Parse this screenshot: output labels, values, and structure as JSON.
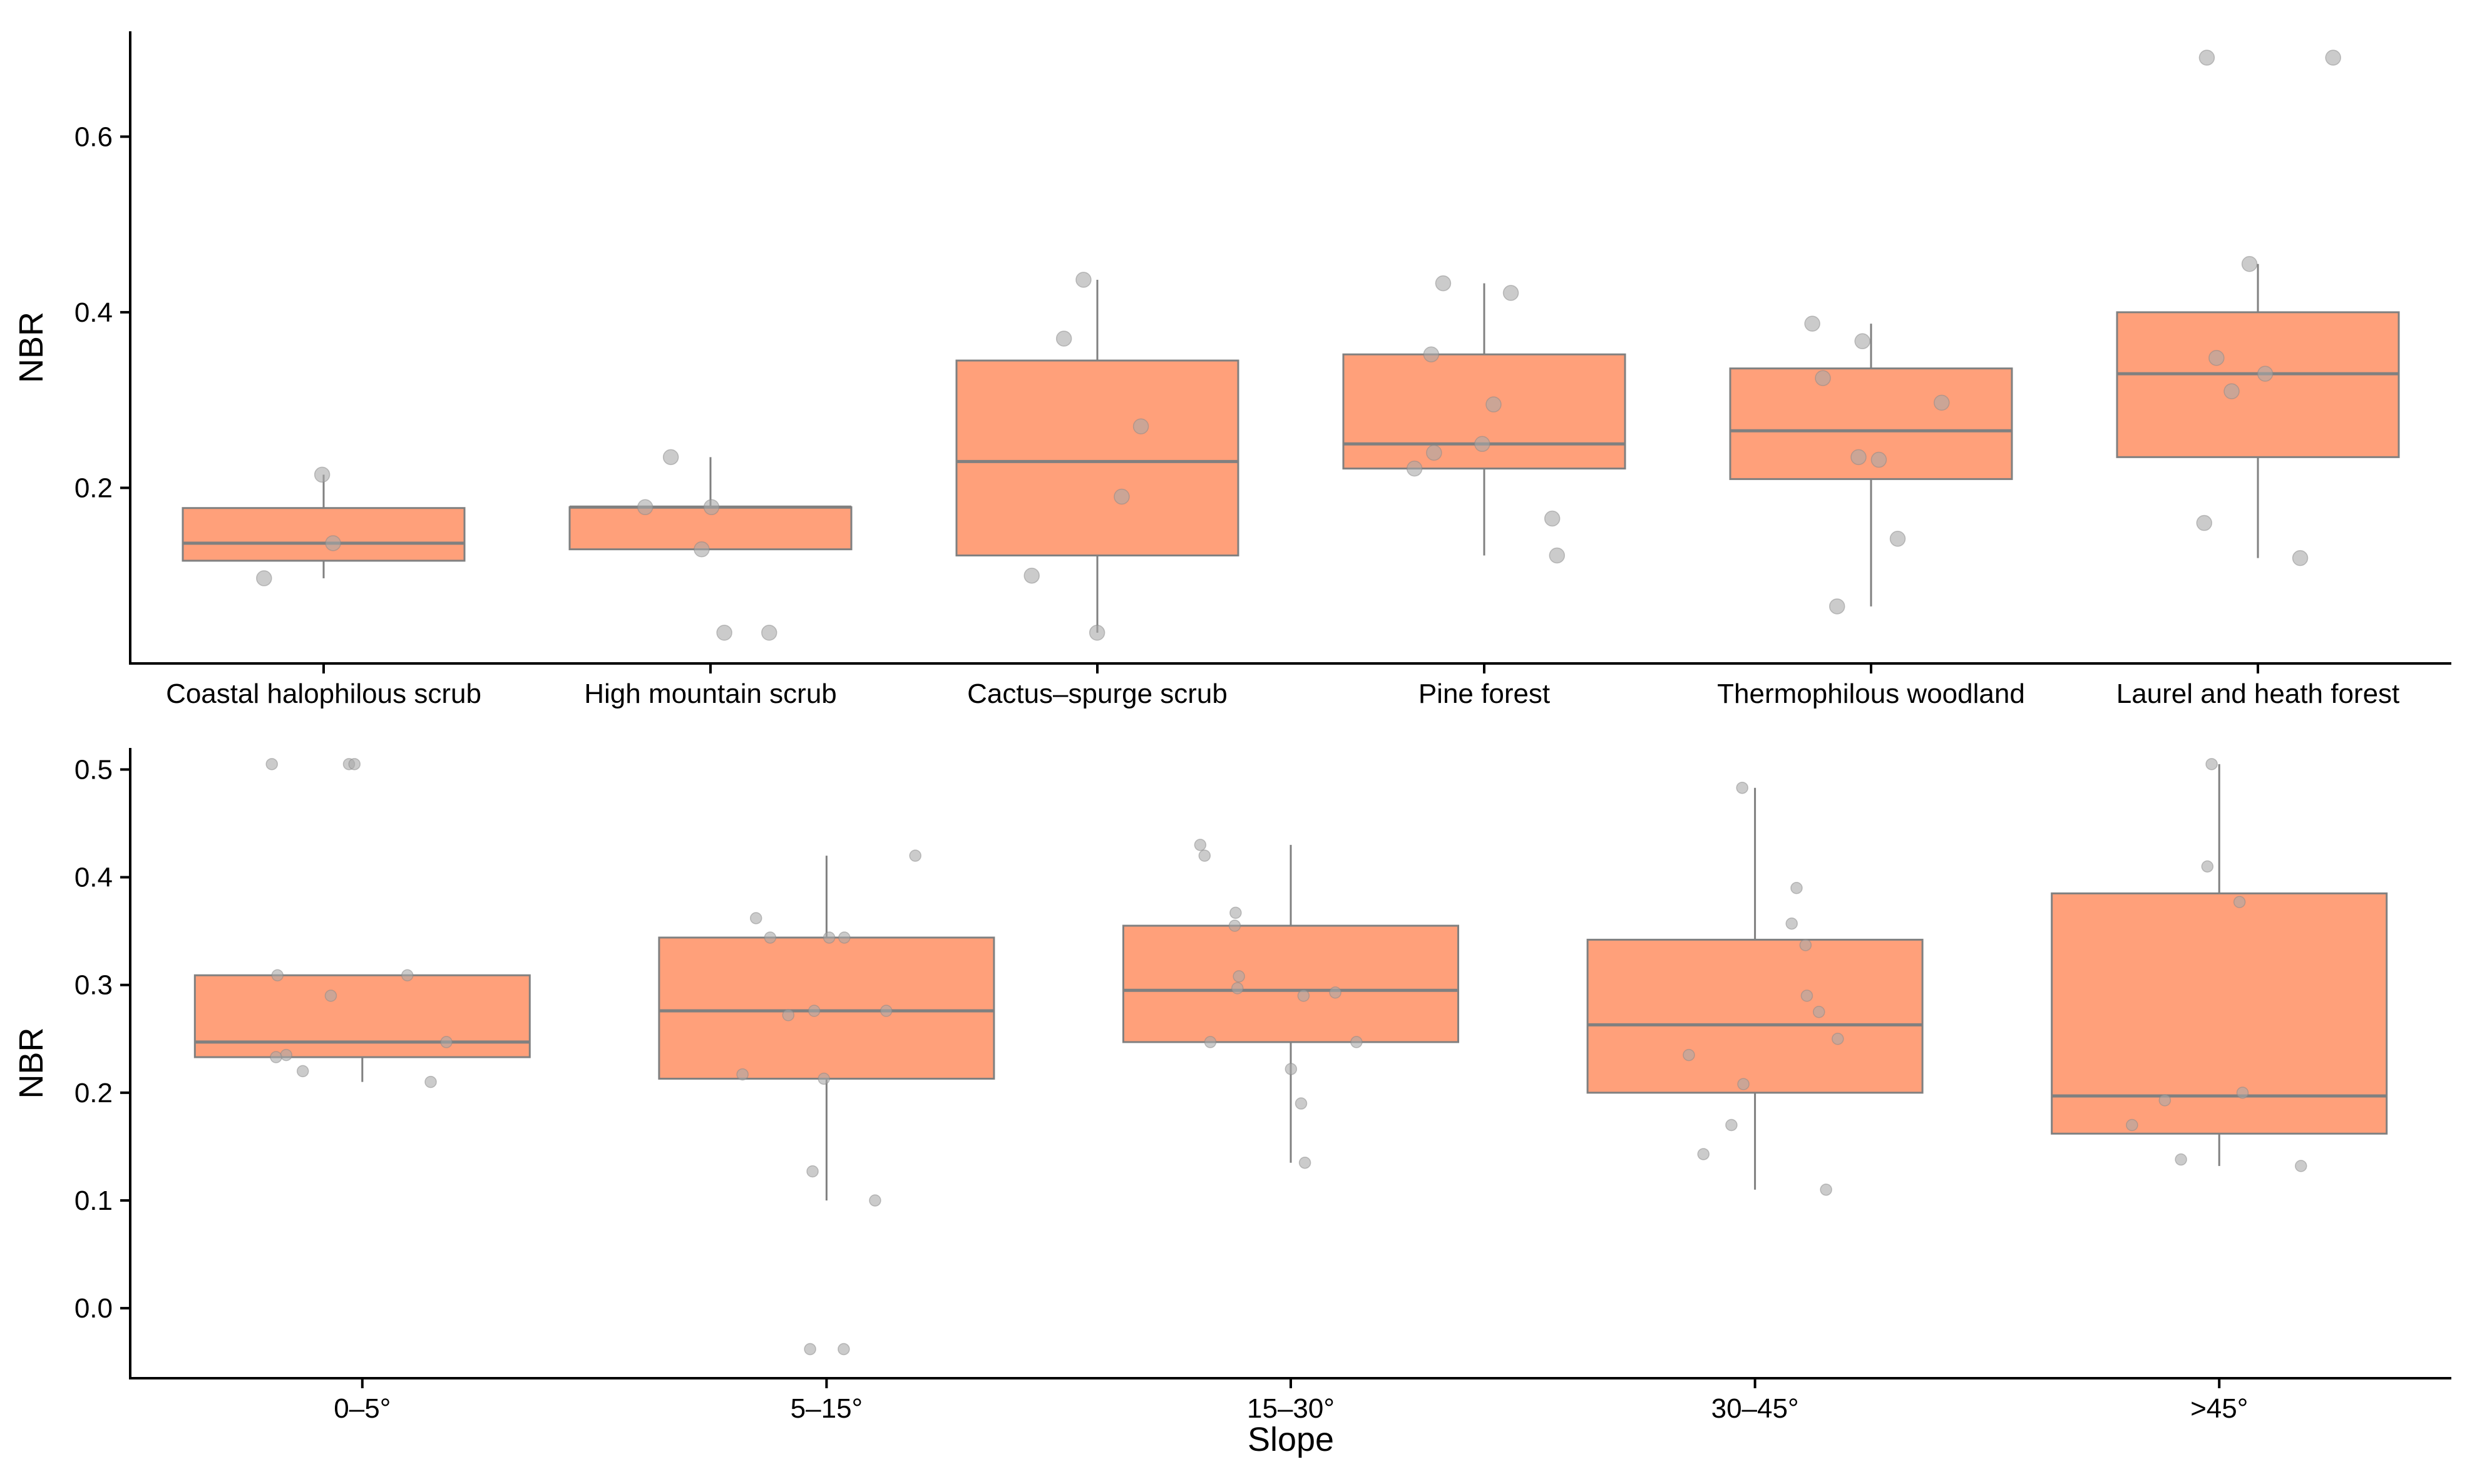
{
  "chart_data": [
    {
      "type": "box",
      "title": "",
      "xlabel": "",
      "ylabel": "NBR",
      "ylim": [
        0.0,
        0.72
      ],
      "yticks": [
        0.2,
        0.4,
        0.6
      ],
      "ytick_labels": [
        "0.2",
        "0.4",
        "0.6"
      ],
      "box_color": "#ffa07a",
      "edge_color": "#808080",
      "point_color": "#a9a9a9",
      "categories": [
        "Coastal halophilous scrub",
        "High mountain scrub",
        "Cactus–spurge scrub",
        "Pine forest",
        "Thermophilous woodland",
        "Laurel and heath forest"
      ],
      "boxes": [
        {
          "whisker_low": 0.097,
          "q1": 0.117,
          "median": 0.137,
          "q3": 0.177,
          "whisker_high": 0.215
        },
        {
          "whisker_low": 0.13,
          "q1": 0.13,
          "median": 0.178,
          "q3": 0.178,
          "whisker_high": 0.235
        },
        {
          "whisker_low": 0.035,
          "q1": 0.123,
          "median": 0.23,
          "q3": 0.345,
          "whisker_high": 0.437
        },
        {
          "whisker_low": 0.123,
          "q1": 0.222,
          "median": 0.25,
          "q3": 0.352,
          "whisker_high": 0.433
        },
        {
          "whisker_low": 0.065,
          "q1": 0.21,
          "median": 0.265,
          "q3": 0.336,
          "whisker_high": 0.387
        },
        {
          "whisker_low": 0.12,
          "q1": 0.235,
          "median": 0.33,
          "q3": 0.4,
          "whisker_high": 0.455
        }
      ],
      "points": [
        [
          0.215,
          0.137,
          0.097
        ],
        [
          0.235,
          0.13,
          0.178,
          0.178,
          0.035,
          0.035
        ],
        [
          0.437,
          0.37,
          0.27,
          0.19,
          0.1,
          0.035
        ],
        [
          0.433,
          0.422,
          0.352,
          0.295,
          0.25,
          0.24,
          0.222,
          0.165,
          0.123
        ],
        [
          0.387,
          0.367,
          0.297,
          0.325,
          0.235,
          0.232,
          0.142,
          0.065
        ],
        [
          0.69,
          0.69,
          0.455,
          0.348,
          0.33,
          0.31,
          0.16,
          0.12
        ]
      ]
    },
    {
      "type": "box",
      "title": "",
      "xlabel": "Slope",
      "ylabel": "NBR",
      "ylim": [
        -0.065,
        0.52
      ],
      "yticks": [
        0.0,
        0.1,
        0.2,
        0.3,
        0.4,
        0.5
      ],
      "ytick_labels": [
        "0.0",
        "0.1",
        "0.2",
        "0.3",
        "0.4",
        "0.5"
      ],
      "box_color": "#ffa07a",
      "edge_color": "#808080",
      "point_color": "#a9a9a9",
      "categories": [
        "0–5°",
        "5–15°",
        "15–30°",
        "30–45°",
        ">45°"
      ],
      "boxes": [
        {
          "whisker_low": 0.21,
          "q1": 0.233,
          "median": 0.247,
          "q3": 0.309,
          "whisker_high": 0.309
        },
        {
          "whisker_low": 0.1,
          "q1": 0.213,
          "median": 0.276,
          "q3": 0.344,
          "whisker_high": 0.42
        },
        {
          "whisker_low": 0.135,
          "q1": 0.247,
          "median": 0.295,
          "q3": 0.355,
          "whisker_high": 0.43
        },
        {
          "whisker_low": 0.11,
          "q1": 0.2,
          "median": 0.263,
          "q3": 0.342,
          "whisker_high": 0.483
        },
        {
          "whisker_low": 0.132,
          "q1": 0.162,
          "median": 0.197,
          "q3": 0.385,
          "whisker_high": 0.505
        }
      ],
      "points": [
        [
          0.505,
          0.505,
          0.505,
          0.309,
          0.309,
          0.29,
          0.247,
          0.235,
          0.233,
          0.22,
          0.21
        ],
        [
          0.42,
          0.362,
          0.344,
          0.344,
          0.344,
          0.276,
          0.272,
          0.276,
          0.217,
          0.213,
          0.127,
          0.1,
          -0.038,
          -0.038
        ],
        [
          0.43,
          0.42,
          0.367,
          0.355,
          0.308,
          0.297,
          0.293,
          0.29,
          0.247,
          0.247,
          0.222,
          0.19,
          0.135
        ],
        [
          0.483,
          0.39,
          0.357,
          0.337,
          0.29,
          0.275,
          0.25,
          0.235,
          0.208,
          0.17,
          0.143,
          0.11
        ],
        [
          0.505,
          0.41,
          0.377,
          0.2,
          0.193,
          0.17,
          0.138,
          0.132
        ]
      ]
    }
  ]
}
